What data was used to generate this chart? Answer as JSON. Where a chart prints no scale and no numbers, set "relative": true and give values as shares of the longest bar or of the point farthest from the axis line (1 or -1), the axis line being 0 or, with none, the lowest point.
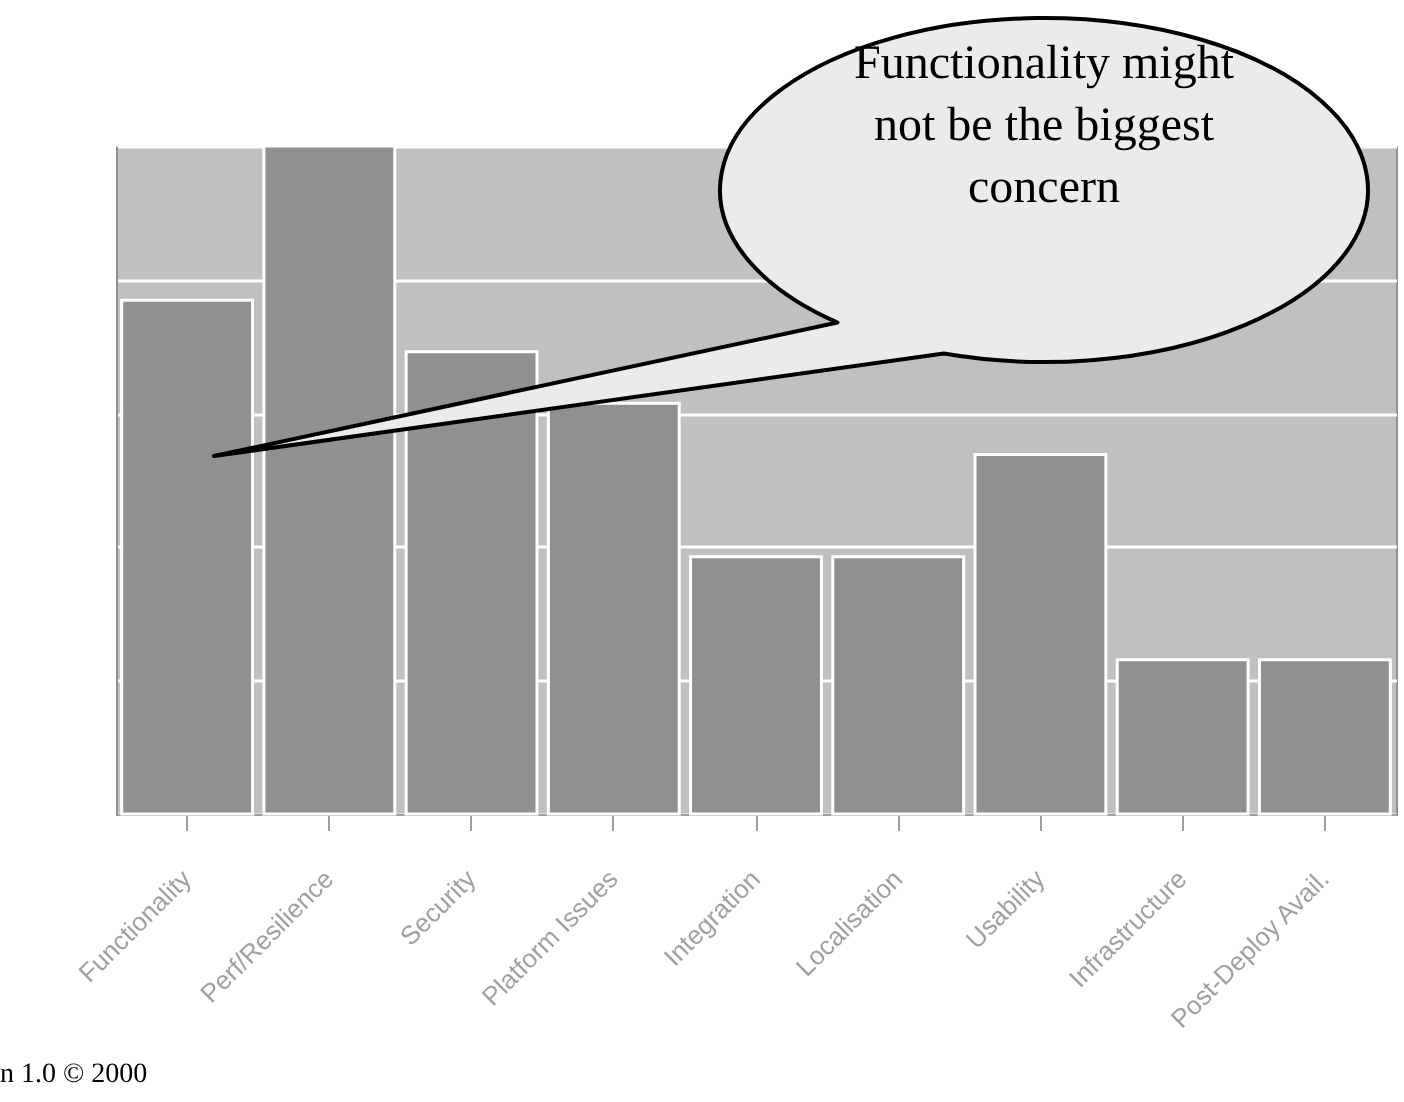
{
  "chart_data": {
    "type": "bar",
    "relative": true,
    "categories": [
      "Functionality",
      "Perf/Resilience",
      "Security",
      "Platform Issues",
      "Integration",
      "Localisation",
      "Usability",
      "Infrastructure",
      "Post-Deploy Avail."
    ],
    "values": [
      0.769,
      1,
      0.692,
      0.615,
      0.385,
      0.385,
      0.538,
      0.231,
      0.231
    ],
    "color": "#909090",
    "grid": "y",
    "annotations": [
      "Functionality might not be the biggest concern",
      "n 1.0 © 2000"
    ]
  }
}
